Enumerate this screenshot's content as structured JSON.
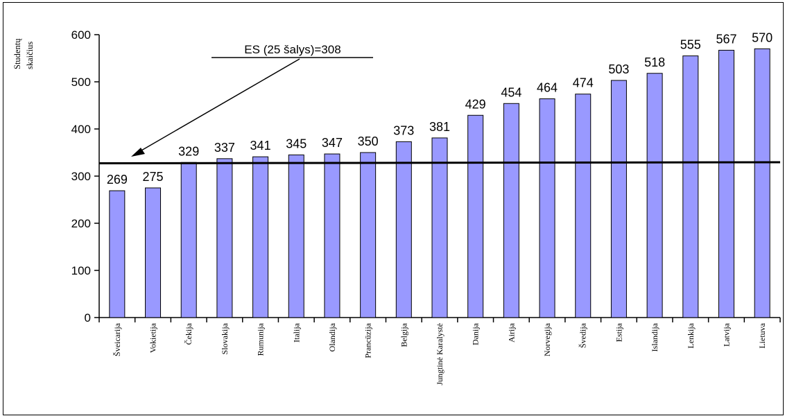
{
  "chart_data": {
    "type": "bar",
    "ylabel_lines": [
      "Studentų",
      "skaičius"
    ],
    "ylim": [
      0,
      600
    ],
    "yticks": [
      0,
      100,
      200,
      300,
      400,
      500,
      600
    ],
    "categories": [
      "Šveicarija",
      "Vokietija",
      "Čekija",
      "Slovakija",
      "Rumunija",
      "Italija",
      "Olandija",
      "Prancūzija",
      "Belgija",
      "Jungtinė Karalystė",
      "Danija",
      "Airija",
      "Norvegija",
      "Švedija",
      "Estija",
      "Islandija",
      "Lenkija",
      "Latvija",
      "Lietuva"
    ],
    "values": [
      269,
      275,
      329,
      337,
      341,
      345,
      347,
      350,
      373,
      381,
      429,
      454,
      464,
      474,
      503,
      518,
      555,
      567,
      570
    ],
    "reference_line": {
      "label": "ES (25 šalys)=308"
    },
    "bar_color": "#9999ff",
    "grid": false,
    "legend": "none"
  }
}
